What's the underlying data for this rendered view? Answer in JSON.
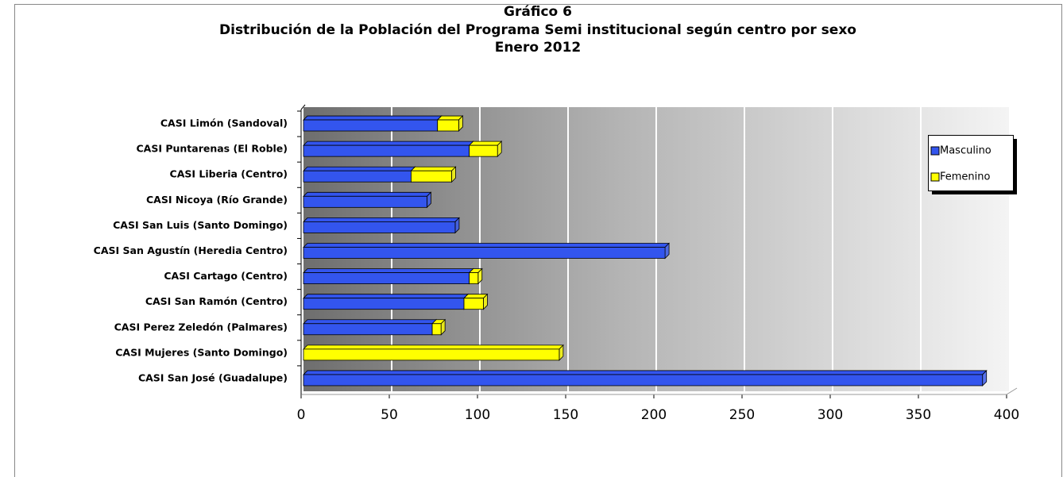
{
  "chart_data": {
    "type": "bar",
    "orientation": "horizontal",
    "stacked": true,
    "title": "Gráfico 6",
    "subtitle": "Distribución de la Población del Programa Semi institucional según centro por sexo",
    "date": "Enero 2012",
    "categories": [
      "CASI Limón (Sandoval)",
      "CASI Puntarenas (El Roble)",
      "CASI Liberia (Centro)",
      "CASI Nicoya (Río Grande)",
      "CASI San Luis (Santo Domingo)",
      "CASI San Agustín (Heredia Centro)",
      "CASI Cartago (Centro)",
      "CASI San Ramón (Centro)",
      "CASI Perez  Zeledón (Palmares)",
      "CASI Mujeres (Santo Domingo)",
      "CASI San José (Guadalupe)"
    ],
    "series": [
      {
        "name": "Masculino",
        "color": "#3355ee",
        "values": [
          76,
          94,
          61,
          70,
          86,
          205,
          94,
          91,
          73,
          0,
          385
        ]
      },
      {
        "name": "Femenino",
        "color": "#ffff00",
        "values": [
          12,
          16,
          23,
          0,
          0,
          0,
          5,
          11,
          5,
          145,
          0
        ]
      }
    ],
    "xlim": [
      0,
      400
    ],
    "xticks": [
      0,
      50,
      100,
      150,
      200,
      250,
      300,
      350,
      400
    ],
    "grid": true
  }
}
